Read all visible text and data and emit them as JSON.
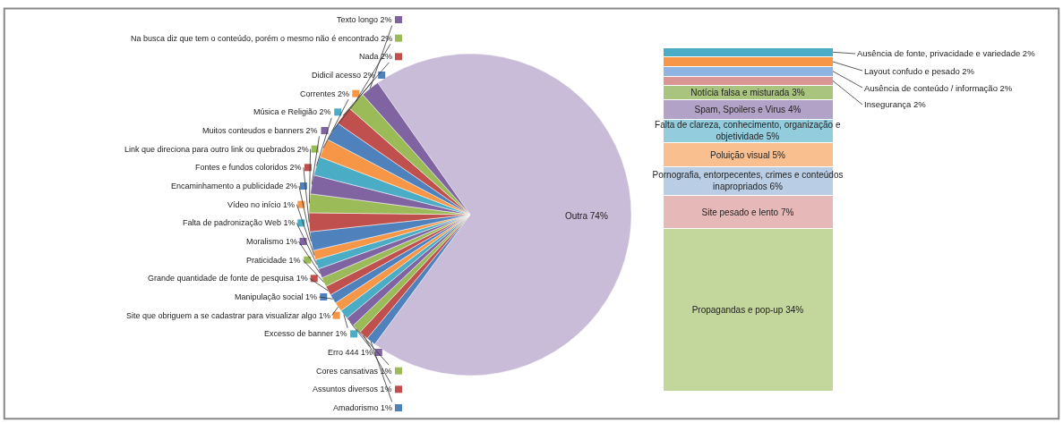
{
  "chart_data": [
    {
      "type": "pie",
      "categories": [
        "Outra",
        "Amadorismo",
        "Assuntos diversos",
        "Cores cansativas",
        "Erro 444",
        "Excesso de banner",
        "Site que obriguem a se cadastrar para visualizar algo",
        "Manipulação social",
        "Grande quantidade de fonte de pesquisa",
        "Praticidade",
        "Moralismo",
        "Falta de padronização Web",
        "Vídeo no início",
        "Encaminhamento a publicidade",
        "Fontes e fundos coloridos",
        "Link que direciona para outro link ou quebrados",
        "Muitos conteudos e banners",
        "Música e Religião",
        "Correntes",
        "Didicil acesso",
        "Nada",
        "Na busca diz que tem o conteúdo, porém o mesmo não é encontrado",
        "Texto longo"
      ],
      "values": [
        74,
        1,
        1,
        1,
        1,
        1,
        1,
        1,
        1,
        1,
        1,
        1,
        1,
        2,
        2,
        2,
        2,
        2,
        2,
        2,
        2,
        2,
        2
      ],
      "value_labels": [
        "74%",
        "1%",
        "1%",
        "1%",
        "1%",
        "1%",
        "1%",
        "1%",
        "1%",
        "1%",
        "1%",
        "1%",
        "1%",
        "2%",
        "2%",
        "2%",
        "2%",
        "2%",
        "2%",
        "2%",
        "2%",
        "2%",
        "2%"
      ],
      "colors": [
        "#c9bcd8",
        "#4f81bd",
        "#c0504d",
        "#9bbb59",
        "#8064a2",
        "#4bacc6",
        "#f79646",
        "#4f81bd",
        "#c0504d",
        "#9bbb59",
        "#8064a2",
        "#4bacc6",
        "#f79646",
        "#4f81bd",
        "#c0504d",
        "#9bbb59",
        "#8064a2",
        "#4bacc6",
        "#f79646",
        "#4f81bd",
        "#c0504d",
        "#9bbb59",
        "#8064a2"
      ],
      "legend": "left"
    },
    {
      "type": "bar",
      "stacked": true,
      "categories": [
        null
      ],
      "series": [
        {
          "color": "#c3d69b",
          "values": [
            34
          ],
          "value_labels": [
            "Propagandas e pop-up 34%"
          ]
        },
        {
          "color": "#e6b9b8",
          "values": [
            7
          ],
          "value_labels": [
            "Site pesado e lento 7%"
          ]
        },
        {
          "color": "#b9cde5",
          "values": [
            6
          ],
          "value_labels": [
            "Pornografia, entorpecentes, crimes e conteúdos inapropriados 6%"
          ]
        },
        {
          "color": "#fabf8f",
          "values": [
            5
          ],
          "value_labels": [
            "Poluição visual 5%"
          ]
        },
        {
          "color": "#93cddd",
          "values": [
            5
          ],
          "value_labels": [
            "Falta de clareza, conhecimento, organização e objetividade 5%"
          ]
        },
        {
          "color": "#b3a2c7",
          "values": [
            4
          ],
          "value_labels": [
            "Spam, Spoilers e Virus 4%"
          ]
        },
        {
          "color": "#a9c47f",
          "values": [
            3
          ],
          "value_labels": [
            "Notícia falsa e misturada 3%"
          ]
        },
        {
          "color": "#d99694",
          "values": [
            2
          ],
          "value_labels": [
            "Insegurança 2%"
          ]
        },
        {
          "color": "#8eb4e3",
          "values": [
            2
          ],
          "value_labels": [
            "Ausência de conteúdo / informação 2%"
          ]
        },
        {
          "color": "#f79646",
          "values": [
            2
          ],
          "value_labels": [
            "Layout confudo e pesado 2%"
          ]
        },
        {
          "color": "#4bacc6",
          "values": [
            2
          ],
          "value_labels": [
            "Ausência de fonte, privacidade e variedade 2%"
          ]
        }
      ]
    }
  ]
}
